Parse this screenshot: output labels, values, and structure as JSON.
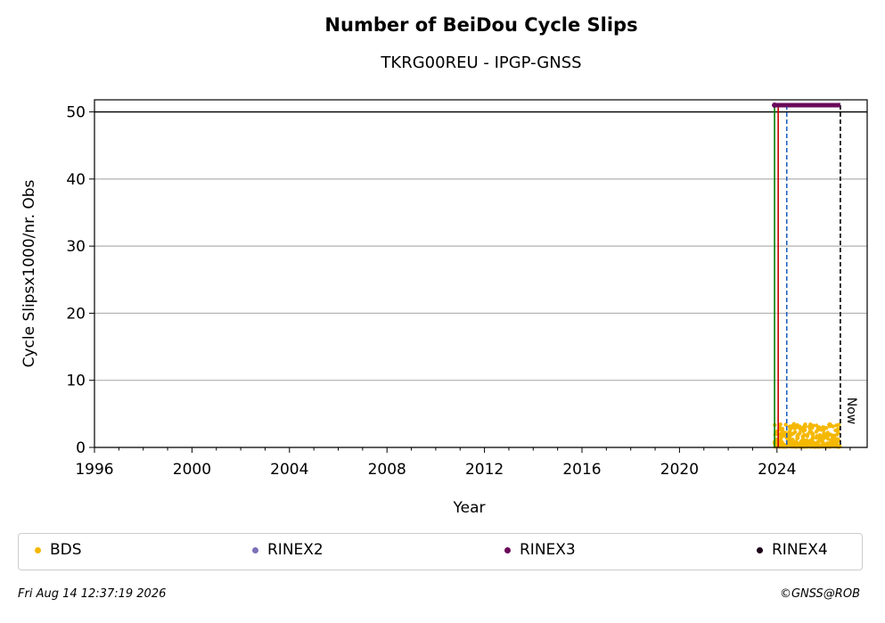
{
  "chart_data": {
    "type": "scatter",
    "title": "Number of BeiDou Cycle Slips",
    "subtitle": "TKRG00REU - IPGP-GNSS",
    "xlabel": "Year",
    "ylabel": "Cycle Slipsx1000/nr. Obs",
    "xlim": [
      1996,
      2027.7
    ],
    "ylim": [
      0,
      51.8
    ],
    "xticks": [
      1996,
      2000,
      2004,
      2008,
      2012,
      2016,
      2020,
      2024
    ],
    "yticks": [
      0,
      10,
      20,
      30,
      40,
      50
    ],
    "grid": "horizontal",
    "reference_line_y": 50,
    "now_label": "Now",
    "vertical_lines": [
      {
        "x": 2023.9,
        "color": "#008000",
        "style": "solid"
      },
      {
        "x": 2024.05,
        "color": "#cc0000",
        "style": "solid"
      },
      {
        "x": 2024.4,
        "color": "#1f5fbf",
        "style": "dashed"
      },
      {
        "x": 2026.6,
        "color": "#000000",
        "style": "dashed"
      }
    ],
    "rinex3_bar": {
      "x_start": 2023.9,
      "x_end": 2026.6,
      "y": 51
    },
    "series": [
      {
        "name": "BDS",
        "color": "#f5b800",
        "x_range": [
          2023.9,
          2026.6
        ],
        "y_min": 0.1,
        "y_max": 3.5
      }
    ],
    "legend": [
      {
        "label": "BDS",
        "color": "#f5b800"
      },
      {
        "label": "RINEX2",
        "color": "#7b72b8"
      },
      {
        "label": "RINEX3",
        "color": "#6a0a5a"
      },
      {
        "label": "RINEX4",
        "color": "#1a0018"
      }
    ],
    "legend_position": "bottom"
  },
  "footer": {
    "timestamp": "Fri Aug 14 12:37:19 2026",
    "credit": "©GNSS@ROB"
  }
}
